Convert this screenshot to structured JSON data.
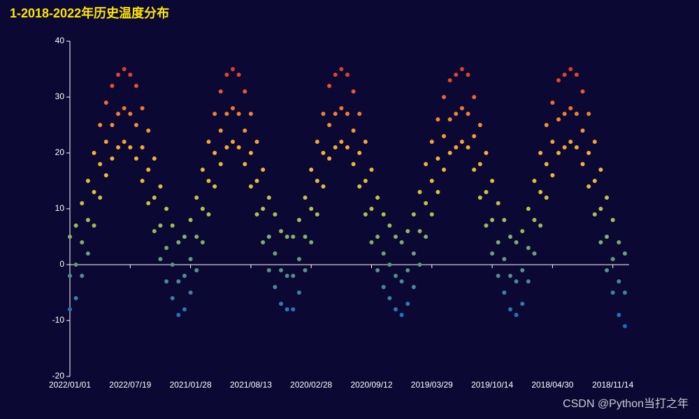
{
  "chart_data": {
    "type": "scatter",
    "title": "1-2018-2022年历史温度分布",
    "watermark": "CSDN @Python当打之年",
    "categories": [
      "2022/01/01",
      null,
      null,
      null,
      null,
      null,
      null,
      null,
      null,
      null,
      "2022/07/19",
      null,
      null,
      null,
      null,
      null,
      null,
      null,
      null,
      null,
      "2021/01/28",
      null,
      null,
      null,
      null,
      null,
      null,
      null,
      null,
      null,
      "2021/08/13",
      null,
      null,
      null,
      null,
      null,
      null,
      null,
      null,
      null,
      "2020/02/28",
      null,
      null,
      null,
      null,
      null,
      null,
      null,
      null,
      null,
      "2020/09/12",
      null,
      null,
      null,
      null,
      null,
      null,
      null,
      null,
      null,
      "2019/03/29",
      null,
      null,
      null,
      null,
      null,
      null,
      null,
      null,
      null,
      "2019/10/14",
      null,
      null,
      null,
      null,
      null,
      null,
      null,
      null,
      null,
      "2018/04/30",
      null,
      null,
      null,
      null,
      null,
      null,
      null,
      null,
      null,
      "2018/11/14",
      null,
      null
    ],
    "values": [
      [
        5,
        -2,
        -8
      ],
      [
        7,
        0,
        -6
      ],
      [
        11,
        4,
        -2
      ],
      [
        15,
        8,
        2
      ],
      [
        20,
        13,
        7
      ],
      [
        25,
        18,
        12
      ],
      [
        29,
        22,
        16
      ],
      [
        32,
        25,
        19
      ],
      [
        34,
        27,
        21
      ],
      [
        35,
        28,
        22
      ],
      [
        34,
        27,
        21
      ],
      [
        32,
        25,
        19
      ],
      [
        28,
        21,
        15
      ],
      [
        24,
        17,
        11
      ],
      [
        19,
        12,
        6
      ],
      [
        14,
        7,
        1
      ],
      [
        10,
        3,
        -3
      ],
      [
        7,
        0,
        -6
      ],
      [
        4,
        -3,
        -9
      ],
      [
        5,
        -2,
        -8
      ],
      [
        8,
        1,
        -5
      ],
      [
        12,
        5,
        -1
      ],
      [
        17,
        10,
        4
      ],
      [
        22,
        15,
        9
      ],
      [
        27,
        20,
        14
      ],
      [
        31,
        24,
        18
      ],
      [
        34,
        27,
        21
      ],
      [
        35,
        28,
        22
      ],
      [
        34,
        27,
        21
      ],
      [
        31,
        24,
        18
      ],
      [
        27,
        20,
        14
      ],
      [
        22,
        15,
        9
      ],
      [
        17,
        10,
        4
      ],
      [
        12,
        5,
        -1
      ],
      [
        9,
        2,
        -4
      ],
      [
        6,
        -1,
        -7
      ],
      [
        5,
        -2,
        -8
      ],
      [
        5,
        -2,
        -8
      ],
      [
        8,
        1,
        -5
      ],
      [
        12,
        5,
        -1
      ],
      [
        17,
        10,
        4
      ],
      [
        22,
        15,
        9
      ],
      [
        27,
        20,
        14
      ],
      [
        32,
        25,
        19
      ],
      [
        34,
        27,
        21
      ],
      [
        35,
        28,
        22
      ],
      [
        34,
        27,
        21
      ],
      [
        31,
        24,
        18
      ],
      [
        27,
        20,
        14
      ],
      [
        22,
        15,
        9
      ],
      [
        17,
        10,
        4
      ],
      [
        12,
        5,
        -1
      ],
      [
        9,
        2,
        -4
      ],
      [
        7,
        0,
        -6
      ],
      [
        5,
        -2,
        -8
      ],
      [
        4,
        -3,
        -9
      ],
      [
        6,
        -1,
        -7
      ],
      [
        9,
        2,
        -4
      ],
      [
        13,
        6,
        0
      ],
      [
        18,
        11,
        5
      ],
      [
        22,
        15,
        9
      ],
      [
        26,
        19,
        13
      ],
      [
        30,
        23,
        17
      ],
      [
        33,
        26,
        20
      ],
      [
        34,
        27,
        21
      ],
      [
        35,
        28,
        22
      ],
      [
        34,
        27,
        21
      ],
      [
        30,
        23,
        17
      ],
      [
        25,
        18,
        12
      ],
      [
        20,
        13,
        7
      ],
      [
        15,
        8,
        2
      ],
      [
        11,
        4,
        -2
      ],
      [
        8,
        1,
        -5
      ],
      [
        5,
        -2,
        -8
      ],
      [
        4,
        -3,
        -9
      ],
      [
        6,
        -1,
        -7
      ],
      [
        10,
        3,
        -3
      ],
      [
        15,
        8,
        2
      ],
      [
        20,
        13,
        7
      ],
      [
        25,
        18,
        12
      ],
      [
        29,
        22,
        16
      ],
      [
        33,
        26,
        20
      ],
      [
        34,
        27,
        21
      ],
      [
        35,
        28,
        22
      ],
      [
        34,
        27,
        21
      ],
      [
        31,
        24,
        18
      ],
      [
        27,
        20,
        14
      ],
      [
        22,
        15,
        9
      ],
      [
        17,
        10,
        4
      ],
      [
        12,
        5,
        -1
      ],
      [
        8,
        1,
        -5
      ],
      [
        4,
        -3,
        -9
      ],
      [
        2,
        -5,
        -11
      ]
    ],
    "ylim": [
      -20,
      40
    ],
    "yticks": [
      -20,
      -10,
      0,
      10,
      20,
      30,
      40
    ],
    "visual_map": {
      "min": -12,
      "max": 39,
      "colors": [
        "#1565c0",
        "#3d7fa8",
        "#5f9a7e",
        "#9fbd55",
        "#d8c23c",
        "#f8b030",
        "#f5862e",
        "#e84a2c",
        "#c62a22"
      ]
    }
  }
}
